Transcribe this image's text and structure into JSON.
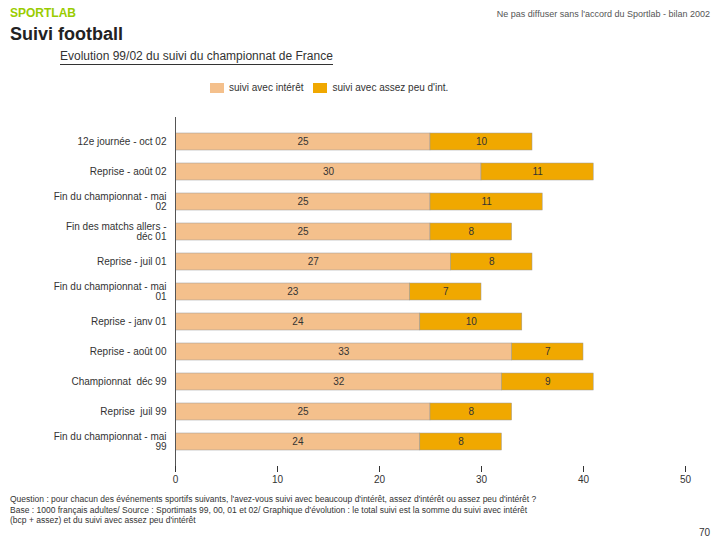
{
  "chart_data": {
    "type": "bar",
    "orientation": "horizontal",
    "stacked": true,
    "data_labels": true,
    "grid": false,
    "title": "Suivi football",
    "subtitle": "Evolution 99/02 du suivi du championnat de France",
    "annotations": [
      "SPORTLAB",
      "Ne pas diffuser sans l'accord du Sportlab - bilan 2002",
      "Question : pour chacun des événements sportifs suivants, l'avez-vous suivi avec beaucoup d'intérêt, assez d'intérêt ou assez peu d'intérêt ?",
      "Base : 1000 français adultes/ Source : Sportimats 99, 00, 01 et 02/ Graphique d'évolution :  le total suivi est la somme du suivi avec intérêt\n(bcp + assez) et du suivi avec assez peu d'intérêt",
      "70"
    ],
    "categories": [
      "12e journée - oct 02",
      "Reprise - août 02",
      "Fin du championnat - mai\n02",
      "Fin des matchs allers -\ndéc 01",
      "Reprise - juil 01",
      "Fin du championnat - mai\n01",
      "Reprise - janv 01",
      "Reprise - août 00",
      "Championnat  déc 99",
      "Reprise  juil 99",
      "Fin du championnat - mai\n99"
    ],
    "series": [
      {
        "name": "suivi avec intérêt",
        "color": "#F4C08C",
        "values": [
          25,
          30,
          25,
          25,
          27,
          23,
          24,
          33,
          32,
          25,
          24
        ]
      },
      {
        "name": "suivi avec assez peu d'int.",
        "color": "#F0A800",
        "values": [
          10,
          11,
          11,
          8,
          8,
          7,
          10,
          7,
          9,
          8,
          8
        ]
      }
    ],
    "xlim": [
      0,
      50
    ],
    "xticks": [
      0,
      10,
      20,
      30,
      40,
      50
    ]
  }
}
